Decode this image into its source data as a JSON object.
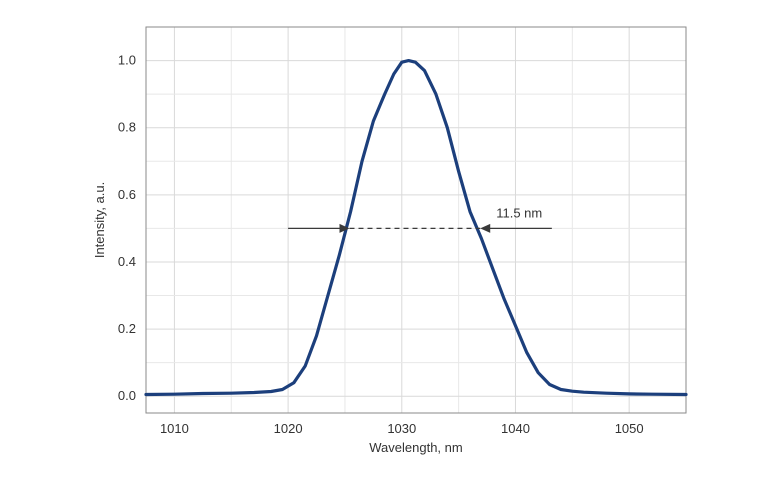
{
  "chart_data": {
    "type": "line",
    "title": "",
    "xlabel": "Wavelength, nm",
    "ylabel": "Intensity, a.u.",
    "xlim": [
      1007.5,
      1055
    ],
    "ylim": [
      -0.05,
      1.1
    ],
    "grid": true,
    "legend": "none",
    "x_ticks": [
      1010,
      1020,
      1030,
      1040,
      1050
    ],
    "x_tick_labels": [
      "1010",
      "1020",
      "1030",
      "1040",
      "1050"
    ],
    "y_ticks": [
      0.0,
      0.2,
      0.4,
      0.6,
      0.8,
      1.0
    ],
    "y_tick_labels": [
      "0.0",
      "0.2",
      "0.4",
      "0.6",
      "0.8",
      "1.0"
    ],
    "series": [
      {
        "color": "#1c3f7c",
        "x": [
          1007.5,
          1010,
          1012.5,
          1015,
          1017,
          1018.5,
          1019.5,
          1020.5,
          1021.5,
          1022.5,
          1023.5,
          1024.5,
          1025.5,
          1026.5,
          1027.5,
          1028.5,
          1029.3,
          1030,
          1030.6,
          1031.2,
          1032,
          1033,
          1034,
          1035,
          1036,
          1037,
          1038,
          1039,
          1040,
          1041,
          1042,
          1043,
          1044,
          1045,
          1046,
          1048,
          1050,
          1052,
          1055
        ],
        "y": [
          0.005,
          0.006,
          0.008,
          0.009,
          0.011,
          0.014,
          0.02,
          0.04,
          0.09,
          0.18,
          0.3,
          0.42,
          0.55,
          0.7,
          0.82,
          0.9,
          0.96,
          0.995,
          1.0,
          0.995,
          0.97,
          0.9,
          0.8,
          0.67,
          0.55,
          0.47,
          0.38,
          0.29,
          0.21,
          0.13,
          0.07,
          0.035,
          0.02,
          0.015,
          0.012,
          0.009,
          0.007,
          0.006,
          0.005
        ]
      }
    ],
    "annotations": [
      {
        "text": "11.5 nm",
        "type": "fwhm-arrows",
        "y": 0.5,
        "x_left": 1025.4,
        "x_right": 1036.9,
        "arrow_left_start": 1020,
        "arrow_right_start": 1043.2
      }
    ]
  }
}
